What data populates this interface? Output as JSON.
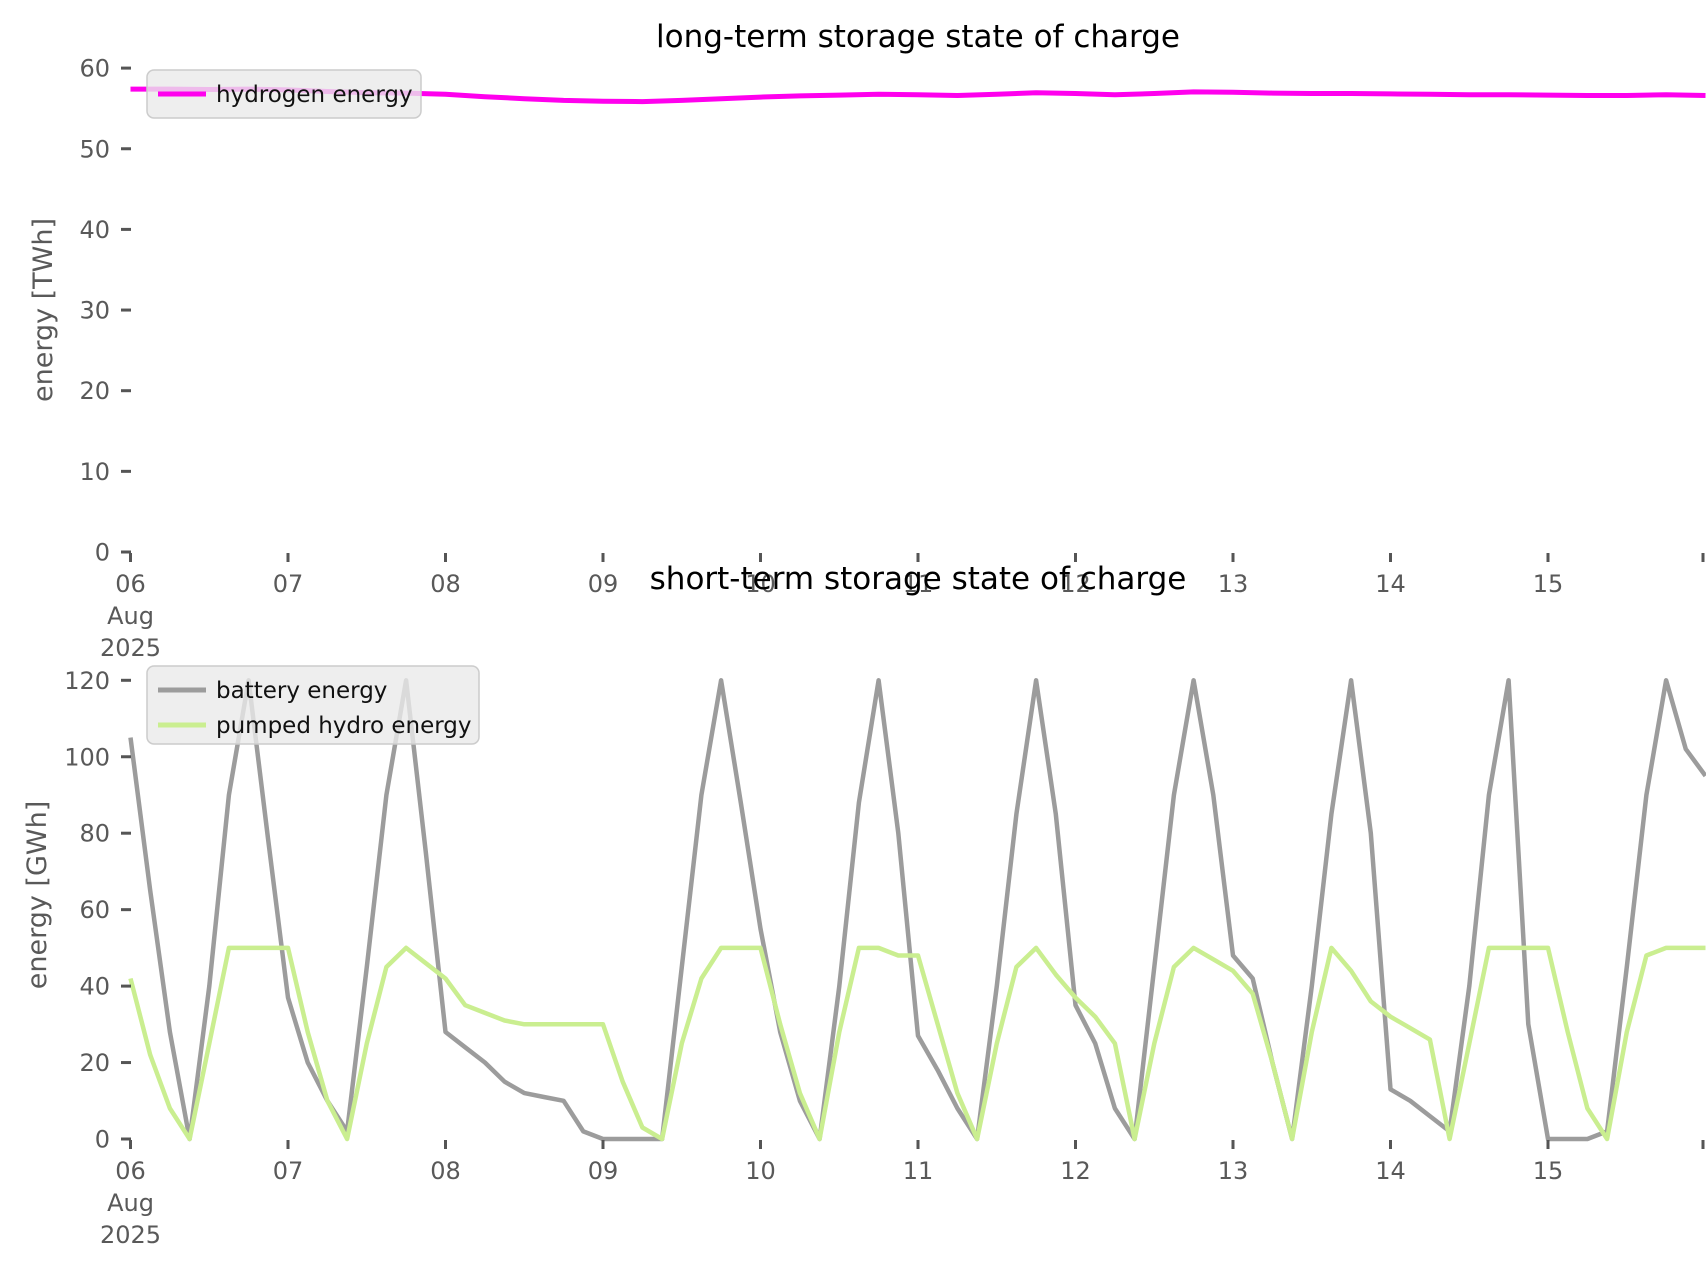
{
  "figure": {
    "background": "#ffffff"
  },
  "colors": {
    "hydrogen": "#ff00ee",
    "battery": "#9c9c9c",
    "pumped_hydro": "#caee90",
    "tick": "#555555",
    "tick_text": "#595959",
    "legend_bg": "#eaeaea",
    "legend_border": "#cccccc"
  },
  "chart_data": [
    {
      "type": "line",
      "title": "long-term storage state of charge",
      "xlabel": "",
      "ylabel": "energy [TWh]",
      "grid": false,
      "legend_position": "upper-left",
      "ylim": [
        0,
        62
      ],
      "yticks": [
        0,
        10,
        20,
        30,
        40,
        50,
        60
      ],
      "x_axis": {
        "unit": "day of August 2025",
        "range": [
          6,
          16
        ],
        "tick_days": [
          6,
          7,
          8,
          9,
          10,
          11,
          12,
          13,
          14,
          15,
          16
        ],
        "tick_labels": [
          "06",
          "07",
          "08",
          "09",
          "10",
          "11",
          "12",
          "13",
          "14",
          "15",
          ""
        ],
        "month_label": "Aug",
        "year_label": "2025"
      },
      "legend": {
        "entries": [
          "hydrogen energy"
        ]
      },
      "series": [
        {
          "name": "hydrogen energy",
          "color_key": "hydrogen",
          "x_start": 6.0,
          "x_step": 0.25,
          "values": [
            57.4,
            57.4,
            57.35,
            57.4,
            57.3,
            57.1,
            56.95,
            56.9,
            56.75,
            56.45,
            56.2,
            56.0,
            55.9,
            55.85,
            56.0,
            56.2,
            56.4,
            56.55,
            56.65,
            56.75,
            56.7,
            56.6,
            56.75,
            56.95,
            56.85,
            56.7,
            56.85,
            57.05,
            57.0,
            56.9,
            56.85,
            56.85,
            56.8,
            56.75,
            56.7,
            56.7,
            56.65,
            56.6,
            56.6,
            56.7,
            56.6
          ]
        }
      ]
    },
    {
      "type": "line",
      "title": "short-term storage state of charge",
      "xlabel": "",
      "ylabel": "energy [GWh]",
      "grid": false,
      "legend_position": "upper-left",
      "ylim": [
        0,
        126
      ],
      "yticks": [
        0,
        20,
        40,
        60,
        80,
        100,
        120
      ],
      "x_axis": {
        "unit": "day of August 2025",
        "range": [
          6,
          16
        ],
        "tick_days": [
          6,
          7,
          8,
          9,
          10,
          11,
          12,
          13,
          14,
          15,
          16
        ],
        "tick_labels": [
          "06",
          "07",
          "08",
          "09",
          "10",
          "11",
          "12",
          "13",
          "14",
          "15",
          ""
        ],
        "month_label": "Aug",
        "year_label": "2025"
      },
      "legend": {
        "entries": [
          "battery energy",
          "pumped hydro energy"
        ]
      },
      "series": [
        {
          "name": "battery energy",
          "color_key": "battery",
          "x_start": 6.0,
          "x_step": 0.125,
          "values": [
            105,
            65,
            28,
            0,
            40,
            90,
            120,
            78,
            37,
            20,
            10,
            2,
            45,
            90,
            120,
            75,
            28,
            24,
            20,
            15,
            12,
            11,
            10,
            2,
            0,
            0,
            0,
            0,
            45,
            90,
            120,
            88,
            55,
            28,
            10,
            0,
            40,
            88,
            120,
            80,
            27,
            18,
            8,
            0,
            40,
            85,
            120,
            85,
            35,
            25,
            8,
            0,
            45,
            90,
            120,
            90,
            48,
            42,
            20,
            0,
            40,
            85,
            120,
            80,
            13,
            10,
            6,
            2,
            40,
            90,
            120,
            30,
            0,
            0,
            0,
            2,
            45,
            90,
            120,
            102,
            95
          ]
        },
        {
          "name": "pumped hydro energy",
          "color_key": "pumped_hydro",
          "x_start": 6.0,
          "x_step": 0.125,
          "values": [
            42,
            22,
            8,
            0,
            25,
            50,
            50,
            50,
            50,
            28,
            10,
            0,
            25,
            45,
            50,
            46,
            42,
            35,
            33,
            31,
            30,
            30,
            30,
            30,
            30,
            15,
            3,
            0,
            25,
            42,
            50,
            50,
            50,
            30,
            12,
            0,
            28,
            50,
            50,
            48,
            48,
            30,
            12,
            0,
            25,
            45,
            50,
            43,
            37,
            32,
            25,
            0,
            25,
            45,
            50,
            47,
            44,
            38,
            20,
            0,
            28,
            50,
            44,
            36,
            32,
            29,
            26,
            0,
            25,
            50,
            50,
            50,
            50,
            28,
            8,
            0,
            28,
            48,
            50,
            50,
            50
          ]
        }
      ]
    }
  ]
}
